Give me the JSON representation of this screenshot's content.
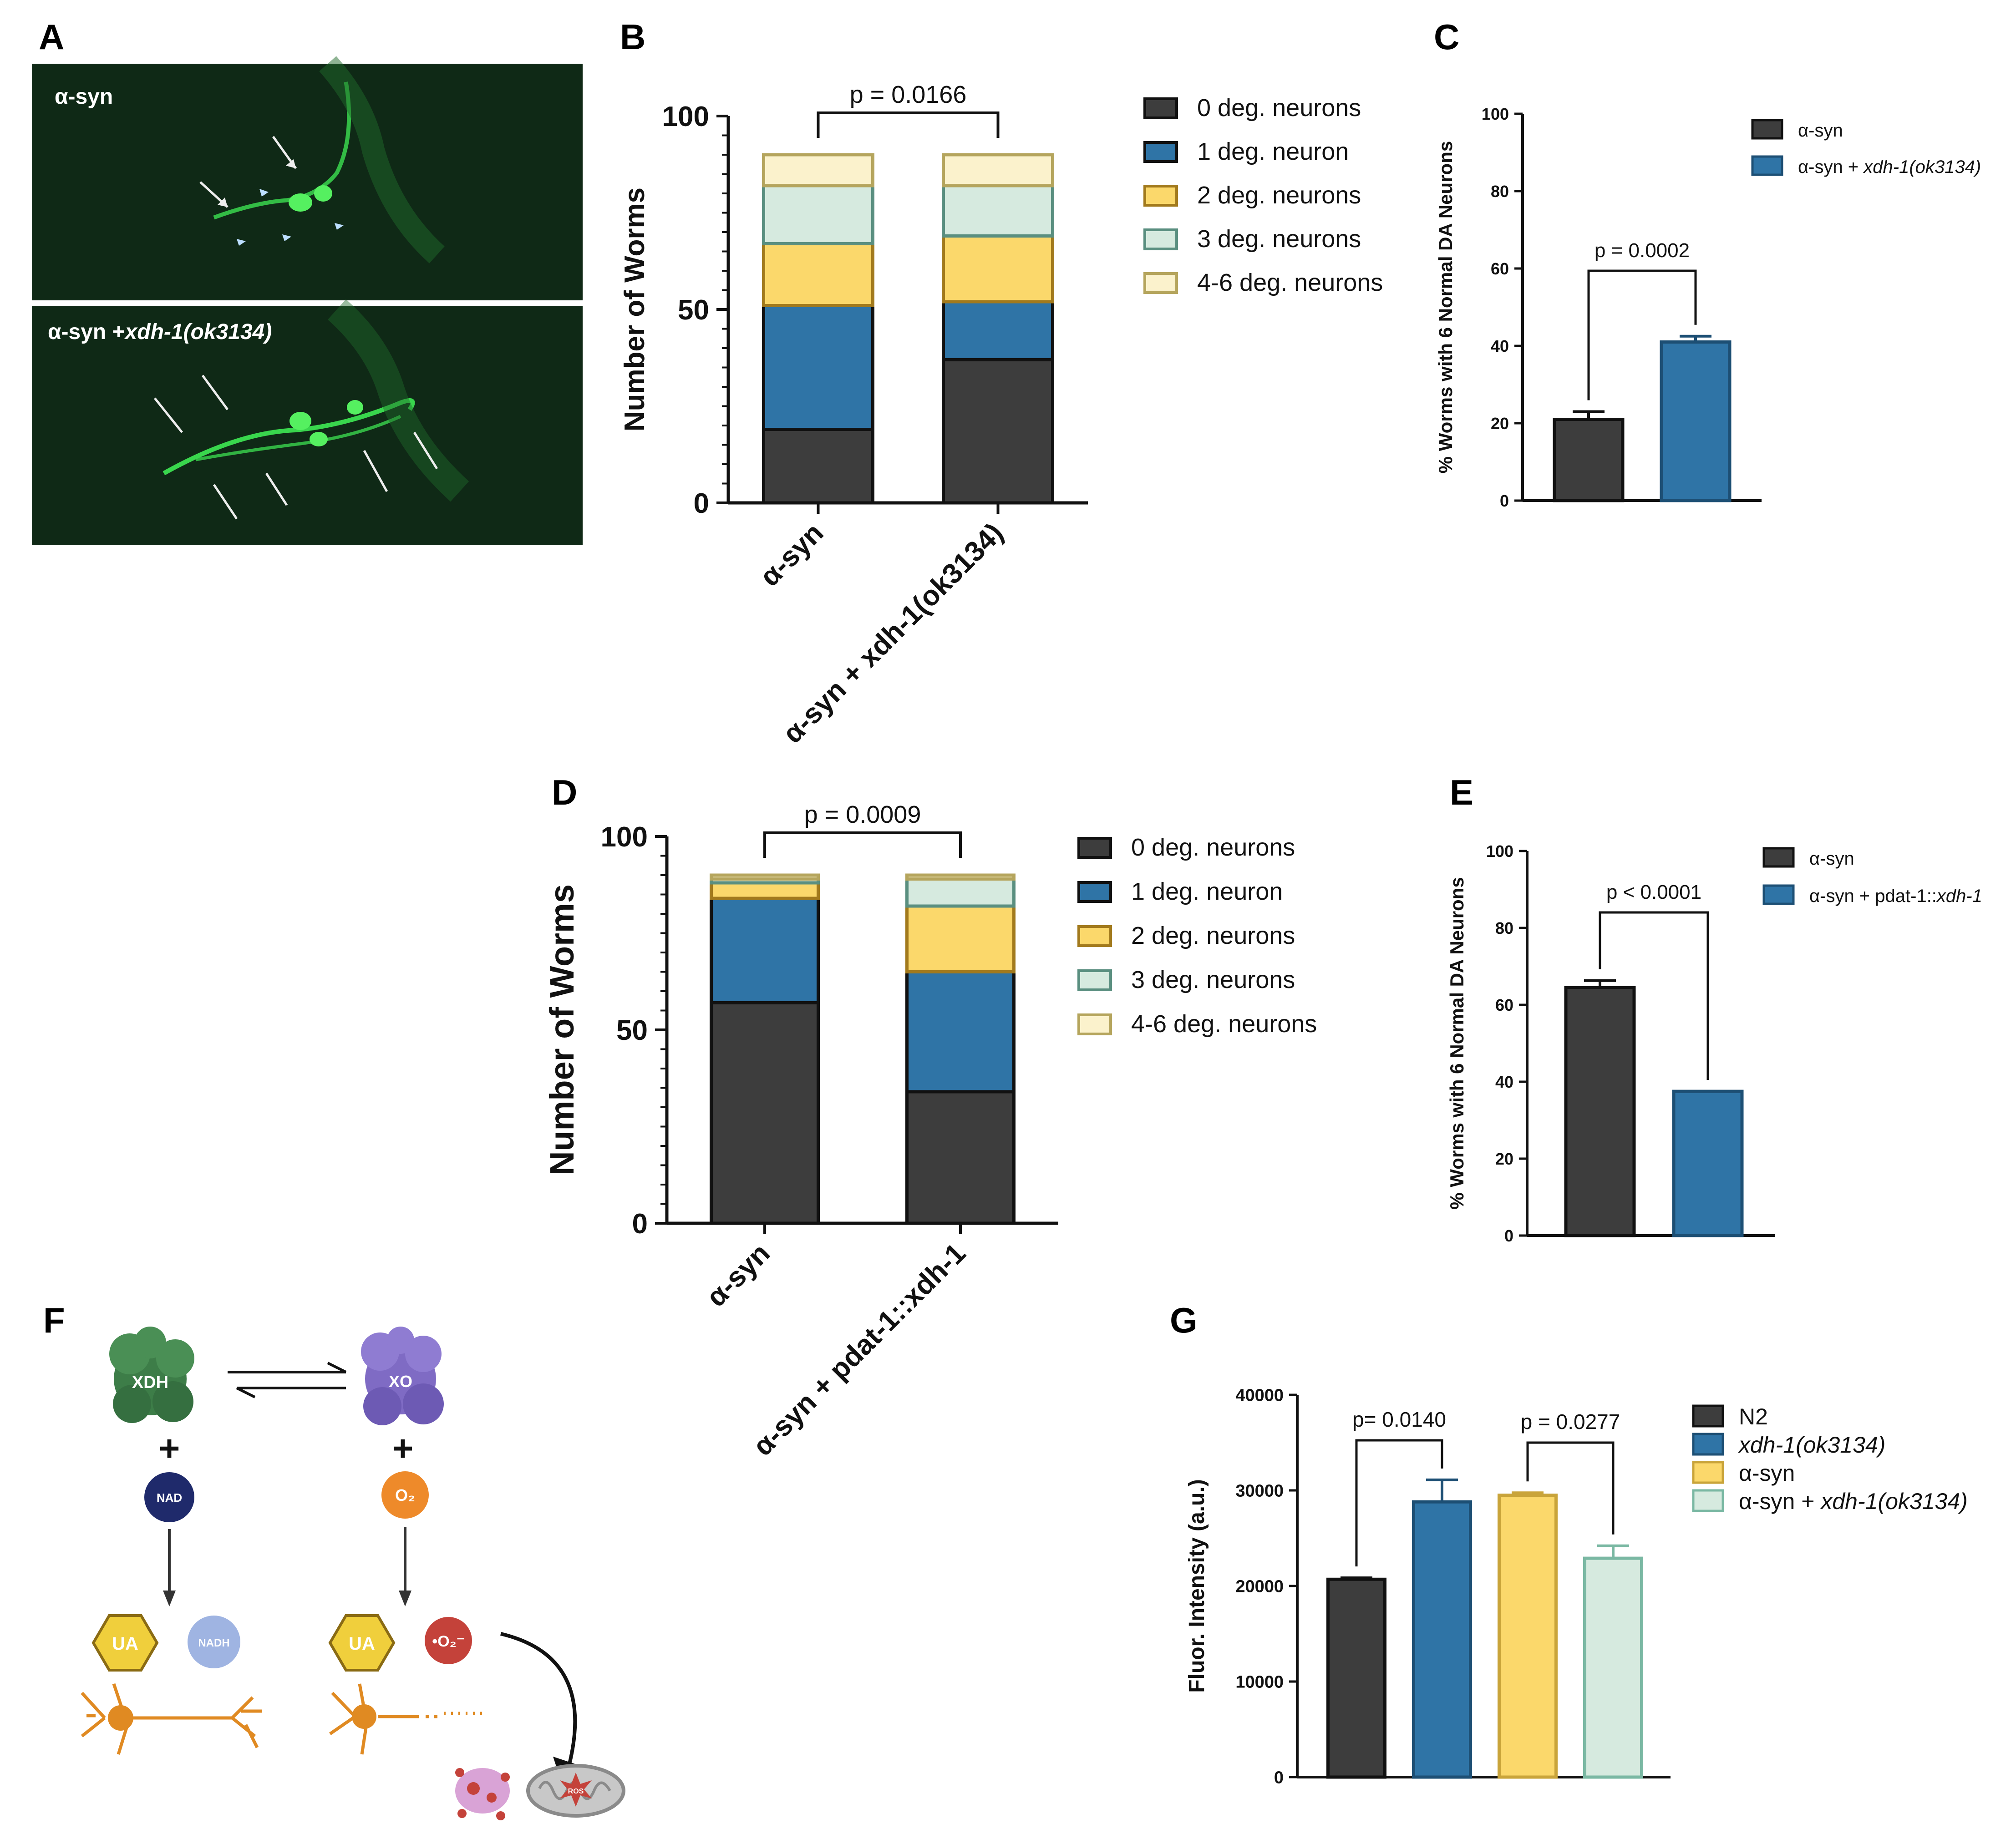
{
  "colors": {
    "dark": "#3d3d3d",
    "blue": "#2f74a6",
    "yellow": "#fbd86b",
    "mint": "#d6eadf",
    "cream": "#fbf2cc",
    "green_bg": "#0f2916",
    "green_fluor": "#39d64d"
  },
  "panels": {
    "A": {
      "letter": "A",
      "top_label": "α-syn",
      "bottom_label_prefix": "α-syn +",
      "bottom_label_italic": "xdh-1(ok3134)"
    },
    "B": {
      "letter": "B"
    },
    "C": {
      "letter": "C"
    },
    "D": {
      "letter": "D"
    },
    "E": {
      "letter": "E"
    },
    "F": {
      "letter": "F",
      "enzyme_left": "XDH",
      "enzyme_right": "XO",
      "plus": "+",
      "cofactor_left": "NAD",
      "cofactor_right": "O₂",
      "product_ua": "UA",
      "product_nadh": "NADH",
      "product_superoxide": "•O₂⁻",
      "ros": "ROS",
      "icons": [
        "xdh-protein-icon",
        "xo-protein-icon",
        "equilibrium-arrows-icon",
        "neuron-healthy-icon",
        "neuron-degenerating-icon",
        "aggregate-icon",
        "mitochondrion-icon"
      ]
    },
    "G": {
      "letter": "G"
    }
  },
  "chart_data": [
    {
      "id": "B",
      "type": "bar",
      "stacked": true,
      "categories": [
        "α-syn",
        "α-syn + xdh-1(ok3134)"
      ],
      "series": [
        {
          "name": "0 deg. neurons",
          "values": [
            19,
            37
          ]
        },
        {
          "name": "1 deg. neuron",
          "values": [
            32,
            15
          ]
        },
        {
          "name": "2 deg. neurons",
          "values": [
            16,
            17
          ]
        },
        {
          "name": "3 deg. neurons",
          "values": [
            15,
            13
          ]
        },
        {
          "name": "4-6 deg. neurons",
          "values": [
            8,
            8
          ]
        }
      ],
      "xlabel": "",
      "ylabel": "Number of Worms",
      "ylim": [
        0,
        100
      ],
      "yticks": [
        "0",
        "50",
        "100"
      ],
      "annotation": "p = 0.0166",
      "legend": "right"
    },
    {
      "id": "C",
      "type": "bar",
      "categories": [
        "α-syn",
        "α-syn + xdh-1(ok3134)"
      ],
      "legend_labels": [
        {
          "plain": "α-syn",
          "italic": ""
        },
        {
          "plain": "α-syn + ",
          "italic": "xdh-1(ok3134)"
        }
      ],
      "values": [
        21,
        41
      ],
      "errors": [
        2,
        1.5
      ],
      "ylabel": "% Worms with 6 Normal DA Neurons",
      "ylim": [
        0,
        100
      ],
      "yticks": [
        "0",
        "20",
        "40",
        "60",
        "80",
        "100"
      ],
      "annotation": "p = 0.0002",
      "legend": "top-right"
    },
    {
      "id": "D",
      "type": "bar",
      "stacked": true,
      "categories": [
        "α-syn",
        "α-syn + pdat-1::xdh-1"
      ],
      "series": [
        {
          "name": "0 deg. neurons",
          "values": [
            57,
            34
          ]
        },
        {
          "name": "1 deg. neuron",
          "values": [
            27,
            31
          ]
        },
        {
          "name": "2 deg. neurons",
          "values": [
            4,
            17
          ]
        },
        {
          "name": "3 deg. neurons",
          "values": [
            1,
            7
          ]
        },
        {
          "name": "4-6 deg. neurons",
          "values": [
            1,
            1
          ]
        }
      ],
      "xlabel": "",
      "ylabel": "Number of Worms",
      "ylim": [
        0,
        100
      ],
      "yticks": [
        "0",
        "50",
        "100"
      ],
      "annotation": "p = 0.0009",
      "legend": "right"
    },
    {
      "id": "E",
      "type": "bar",
      "categories": [
        "α-syn",
        "α-syn + pdat-1::xdh-1"
      ],
      "legend_labels": [
        {
          "plain": "α-syn",
          "italic": ""
        },
        {
          "plain": "α-syn + pdat-1::",
          "italic": "xdh-1"
        }
      ],
      "values": [
        64.5,
        37.5
      ],
      "errors": [
        1.8,
        0
      ],
      "ylabel": "% Worms with 6 Normal DA Neurons",
      "ylim": [
        0,
        100
      ],
      "yticks": [
        "0",
        "20",
        "40",
        "60",
        "80",
        "100"
      ],
      "annotation": "p < 0.0001",
      "legend": "top-right"
    },
    {
      "id": "G",
      "type": "bar",
      "categories": [
        "N2",
        "xdh-1(ok3134)",
        "α-syn",
        "α-syn + xdh-1(ok3134)"
      ],
      "legend_labels": [
        {
          "plain": "N2",
          "italic": ""
        },
        {
          "plain": "",
          "italic": "xdh-1(ok3134)"
        },
        {
          "plain": "α-syn",
          "italic": ""
        },
        {
          "plain": "α-syn + ",
          "italic": "xdh-1(ok3134)"
        }
      ],
      "values": [
        20700,
        28800,
        29500,
        22900
      ],
      "errors": [
        150,
        2300,
        250,
        1300
      ],
      "ylabel": "Fluor. Intensity (a.u.)",
      "ylim": [
        0,
        40000
      ],
      "yticks": [
        "0",
        "10000",
        "20000",
        "30000",
        "40000"
      ],
      "annotations": [
        "p= 0.0140",
        "p = 0.0277"
      ],
      "legend": "top-right"
    }
  ]
}
